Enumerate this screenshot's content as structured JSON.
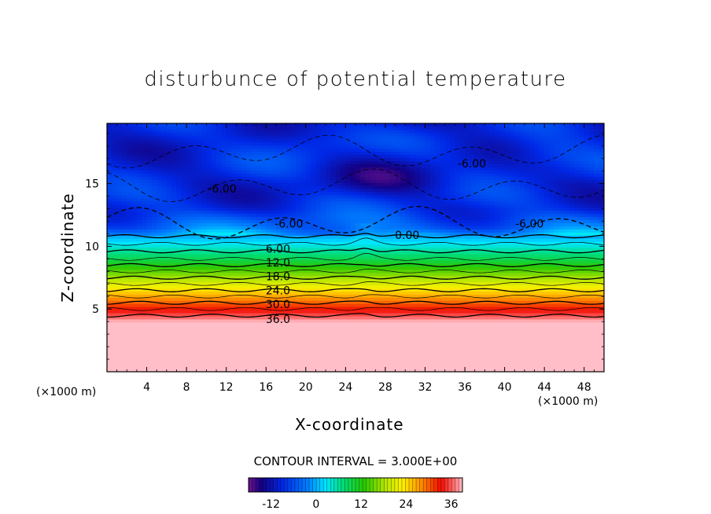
{
  "chart_data": {
    "type": "heatmap",
    "title": "disturbunce of potential temperature",
    "xlabel": "X-coordinate",
    "ylabel": "Z-coordinate",
    "x_unit": "(×1000 m)",
    "xlim": [
      0,
      50
    ],
    "ylim": [
      0,
      19.8
    ],
    "x_ticks": [
      4,
      8,
      12,
      16,
      20,
      24,
      28,
      32,
      36,
      40,
      44,
      48
    ],
    "y_ticks": [
      5,
      10,
      15
    ],
    "contour_interval_label": "CONTOUR INTERVAL = 3.000E+00",
    "contour_interval": 3.0,
    "colorbar": {
      "min": -18,
      "max": 39,
      "ticks": [
        -12,
        0,
        12,
        24,
        36
      ]
    },
    "contour_labels": [
      {
        "text": "-6.00",
        "x": 11.6,
        "z": 14.6
      },
      {
        "text": "-6.00",
        "x": 18.3,
        "z": 11.8
      },
      {
        "text": "-6.00",
        "x": 36.7,
        "z": 16.6
      },
      {
        "text": "-6.00",
        "x": 42.5,
        "z": 11.8
      },
      {
        "text": "0.00",
        "x": 30.2,
        "z": 10.9
      },
      {
        "text": "6.00",
        "x": 17.2,
        "z": 9.8
      },
      {
        "text": "12.0",
        "x": 17.2,
        "z": 8.7
      },
      {
        "text": "18.0",
        "x": 17.2,
        "z": 7.6
      },
      {
        "text": "24.0",
        "x": 17.2,
        "z": 6.5
      },
      {
        "text": "30.0",
        "x": 17.2,
        "z": 5.4
      },
      {
        "text": "36.0",
        "x": 17.2,
        "z": 4.2
      }
    ],
    "theta_profile": [
      {
        "z": 0.0,
        "value": 39
      },
      {
        "z": 4.0,
        "value": 39
      },
      {
        "z": 4.3,
        "value": 37
      },
      {
        "z": 5.0,
        "value": 33
      },
      {
        "z": 6.0,
        "value": 27
      },
      {
        "z": 7.0,
        "value": 21
      },
      {
        "z": 8.0,
        "value": 15
      },
      {
        "z": 9.0,
        "value": 9
      },
      {
        "z": 10.0,
        "value": 4
      },
      {
        "z": 10.8,
        "value": 0
      },
      {
        "z": 11.5,
        "value": -4
      },
      {
        "z": 13.0,
        "value": -8
      },
      {
        "z": 15.0,
        "value": -10
      },
      {
        "z": 17.0,
        "value": -9
      },
      {
        "z": 19.8,
        "value": -10
      }
    ]
  }
}
